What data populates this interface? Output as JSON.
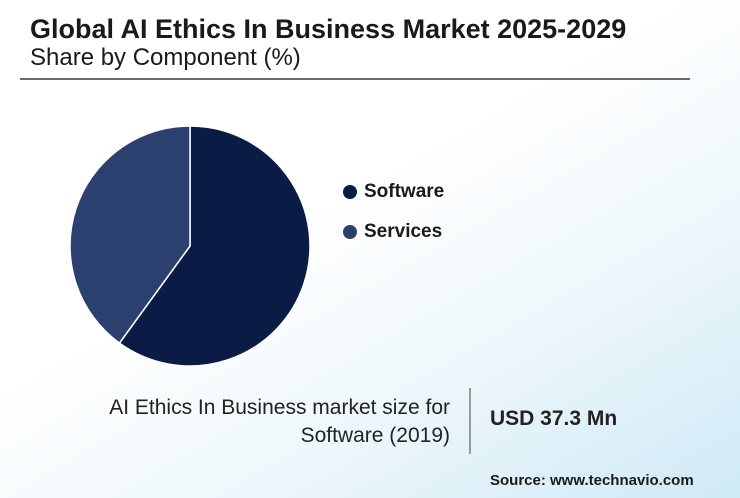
{
  "header": {
    "title": "Global AI Ethics In Business Market 2025-2029",
    "subtitle": "Share by Component (%)"
  },
  "chart_data": {
    "type": "pie",
    "title": "Global AI Ethics In Business Market 2025-2029",
    "subtitle": "Share by Component (%)",
    "slices": [
      {
        "label": "Software",
        "value": 60,
        "color": "#0a1c45"
      },
      {
        "label": "Services",
        "value": 40,
        "color": "#2c4070"
      }
    ],
    "legend_position": "right"
  },
  "callout": {
    "label": "AI Ethics In Business market size for Software (2019)",
    "value": "USD 37.3 Mn"
  },
  "footer": {
    "source": "Source: www.technavio.com"
  }
}
